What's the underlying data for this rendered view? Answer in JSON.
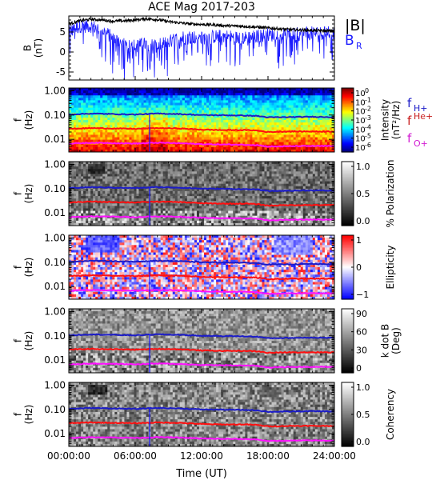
{
  "figure": {
    "title": "ACE Mag 2017-203",
    "xlabel": "Time (UT)"
  },
  "colors": {
    "black": "#000000",
    "blue": "#1c1cff",
    "red": "#ff1010",
    "magenta": "#ff10ff",
    "fH": "#1c1cc8",
    "fHe": "#c81c1c",
    "fO": "#d21cd2"
  },
  "chart_data": [
    {
      "id": "bfield",
      "type": "line",
      "ylabel": "B\n(nT)",
      "ylim": [
        -7,
        9
      ],
      "yticks": [
        -5,
        0,
        5
      ],
      "xlim": [
        0,
        24
      ],
      "xticks": [
        0,
        6,
        12,
        18,
        24
      ],
      "xtick_labels": [
        "00:00:00",
        "06:00:00",
        "12:00:00",
        "18:00:00",
        "24:00:00"
      ],
      "series": [
        {
          "name": "|B|",
          "color": "black",
          "x": [
            0,
            1,
            2,
            3,
            4,
            5,
            6,
            7,
            8,
            9,
            10,
            11,
            12,
            13,
            14,
            15,
            16,
            17,
            18,
            19,
            20,
            21,
            22,
            23,
            24
          ],
          "y": [
            7.0,
            7.8,
            8.2,
            8.0,
            7.7,
            7.8,
            8.0,
            8.3,
            8.1,
            7.6,
            7.3,
            7.0,
            6.9,
            6.8,
            6.6,
            6.5,
            6.4,
            6.2,
            6.0,
            5.8,
            5.6,
            5.5,
            5.4,
            5.3,
            5.3
          ]
        },
        {
          "name": "B_R",
          "color": "blue",
          "x": [
            0,
            1,
            2,
            3,
            4,
            5,
            6,
            7,
            8,
            9,
            10,
            11,
            12,
            13,
            14,
            15,
            16,
            17,
            18,
            19,
            20,
            21,
            22,
            23,
            24
          ],
          "y": [
            5.0,
            6.5,
            6.5,
            5.5,
            3.5,
            2.0,
            1.5,
            2.0,
            1.5,
            2.5,
            3.5,
            3.8,
            3.5,
            3.8,
            4.0,
            3.6,
            3.5,
            4.0,
            4.3,
            4.2,
            4.3,
            4.5,
            4.7,
            4.7,
            4.8
          ]
        }
      ],
      "legend": [
        {
          "text": "|B|",
          "sub": "",
          "color": "black"
        },
        {
          "text": "B",
          "sub": "R",
          "color": "blue"
        }
      ]
    },
    {
      "id": "intensity",
      "type": "heatmap",
      "ylabel": "f\n(Hz)",
      "yscale": "log",
      "ylim": [
        0.003,
        1.3
      ],
      "yticks": [
        1.0,
        0.1,
        0.01
      ],
      "ytick_labels": [
        "1.00",
        "0.10",
        "0.01"
      ],
      "colorbar": {
        "label": "Intensity\n(nT²/Hz)",
        "scale": "log",
        "range": [
          1e-06,
          1
        ],
        "ticks": [
          {
            "b": "10",
            "e": "0"
          },
          {
            "b": "10",
            "e": "-1"
          },
          {
            "b": "10",
            "e": "-2"
          },
          {
            "b": "10",
            "e": "-3"
          },
          {
            "b": "10",
            "e": "-4"
          },
          {
            "b": "10",
            "e": "-5"
          },
          {
            "b": "10",
            "e": "-6"
          }
        ]
      }
    },
    {
      "id": "polarization",
      "type": "heatmap",
      "ylabel": "f\n(Hz)",
      "yscale": "log",
      "ylim": [
        0.003,
        1.3
      ],
      "yticks": [
        1.0,
        0.1,
        0.01
      ],
      "ytick_labels": [
        "1.00",
        "0.10",
        "0.01"
      ],
      "colorbar": {
        "label": "% Polarization",
        "range": [
          0,
          1
        ],
        "ticks": [
          "1.0",
          "0.5",
          "0.0"
        ]
      }
    },
    {
      "id": "ellipticity",
      "type": "heatmap",
      "ylabel": "f\n(Hz)",
      "yscale": "log",
      "ylim": [
        0.003,
        1.3
      ],
      "yticks": [
        1.0,
        0.1,
        0.01
      ],
      "ytick_labels": [
        "1.00",
        "0.10",
        "0.01"
      ],
      "colorbar": {
        "label": "Ellipticity",
        "range": [
          -1,
          1
        ],
        "ticks": [
          "1",
          "0",
          "−1"
        ]
      }
    },
    {
      "id": "kdotb",
      "type": "heatmap",
      "ylabel": "f\n(Hz)",
      "yscale": "log",
      "ylim": [
        0.003,
        1.3
      ],
      "yticks": [
        1.0,
        0.1,
        0.01
      ],
      "ytick_labels": [
        "1.00",
        "0.10",
        "0.01"
      ],
      "colorbar": {
        "label": "k dot B\n(Deg)",
        "range": [
          0,
          90
        ],
        "ticks": [
          "90",
          "60",
          "30",
          "0"
        ]
      }
    },
    {
      "id": "coherency",
      "type": "heatmap",
      "ylabel": "f\n(Hz)",
      "yscale": "log",
      "ylim": [
        0.003,
        1.3
      ],
      "yticks": [
        1.0,
        0.1,
        0.01
      ],
      "ytick_labels": [
        "1.00",
        "0.10",
        "0.01"
      ],
      "colorbar": {
        "label": "Coherency",
        "range": [
          0,
          1
        ],
        "ticks": [
          "1.0",
          "0.5",
          "0.0"
        ]
      }
    }
  ],
  "gyrofrequency_lines": {
    "x": [
      0,
      2,
      4,
      6,
      8,
      10,
      12,
      14,
      16,
      17,
      18,
      20,
      22,
      24
    ],
    "fH+": [
      0.105,
      0.115,
      0.11,
      0.105,
      0.115,
      0.11,
      0.1,
      0.098,
      0.095,
      0.092,
      0.08,
      0.082,
      0.085,
      0.082
    ],
    "fHe+": [
      0.027,
      0.029,
      0.028,
      0.027,
      0.029,
      0.028,
      0.025,
      0.024,
      0.024,
      0.023,
      0.02,
      0.021,
      0.021,
      0.021
    ],
    "fO+": [
      0.0066,
      0.0072,
      0.007,
      0.0067,
      0.0072,
      0.0069,
      0.0063,
      0.0061,
      0.006,
      0.0058,
      0.005,
      0.0052,
      0.0053,
      0.0052
    ]
  },
  "freq_legend": [
    {
      "text": "f",
      "sup": "",
      "sub": "H+",
      "color": "fH"
    },
    {
      "text": "f",
      "sup": "He+",
      "sub": "",
      "color": "fHe"
    },
    {
      "text": "f",
      "sup": "",
      "sub": "O+",
      "color": "fO"
    }
  ]
}
